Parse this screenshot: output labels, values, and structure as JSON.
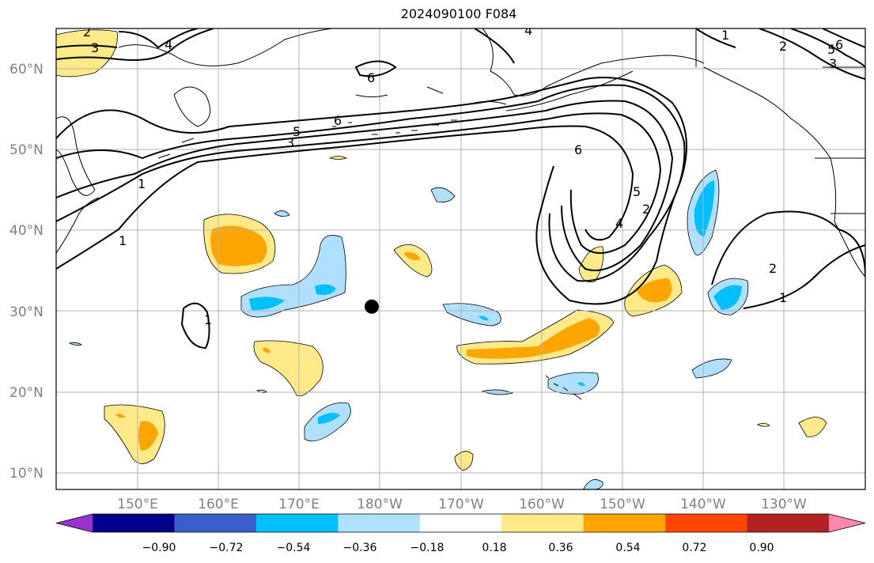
{
  "title": "2024090100 F084",
  "map": {
    "lat_range": [
      8,
      65
    ],
    "lon_range_east": [
      140,
      240
    ],
    "lat_ticks": [
      "10°N",
      "20°N",
      "30°N",
      "40°N",
      "50°N",
      "60°N"
    ],
    "lon_ticks": [
      "150°E",
      "160°E",
      "170°E",
      "180°W",
      "170°W",
      "160°W",
      "150°W",
      "140°W",
      "130°W"
    ],
    "grid": true,
    "storm_marker": {
      "lat": 30.6,
      "lon": 179.0
    }
  },
  "contour_labels": [
    "2",
    "3",
    "4",
    "6",
    "1",
    "5",
    "3",
    "6",
    "6",
    "5",
    "4",
    "2",
    "1",
    "1",
    "2",
    "1",
    "1",
    "2",
    "3",
    "5",
    "6",
    "4"
  ],
  "colorbar": {
    "ticks": [
      "−0.90",
      "−0.72",
      "−0.54",
      "−0.36",
      "−0.18",
      "0.18",
      "0.36",
      "0.54",
      "0.72",
      "0.90"
    ],
    "colors": [
      "#9932cc",
      "#00008b",
      "#3a5fcd",
      "#00bfff",
      "#b0e0ff",
      "#ffffff",
      "#ffea8a",
      "#ffa500",
      "#ff4500",
      "#b22222",
      "#ff88b0"
    ]
  }
}
